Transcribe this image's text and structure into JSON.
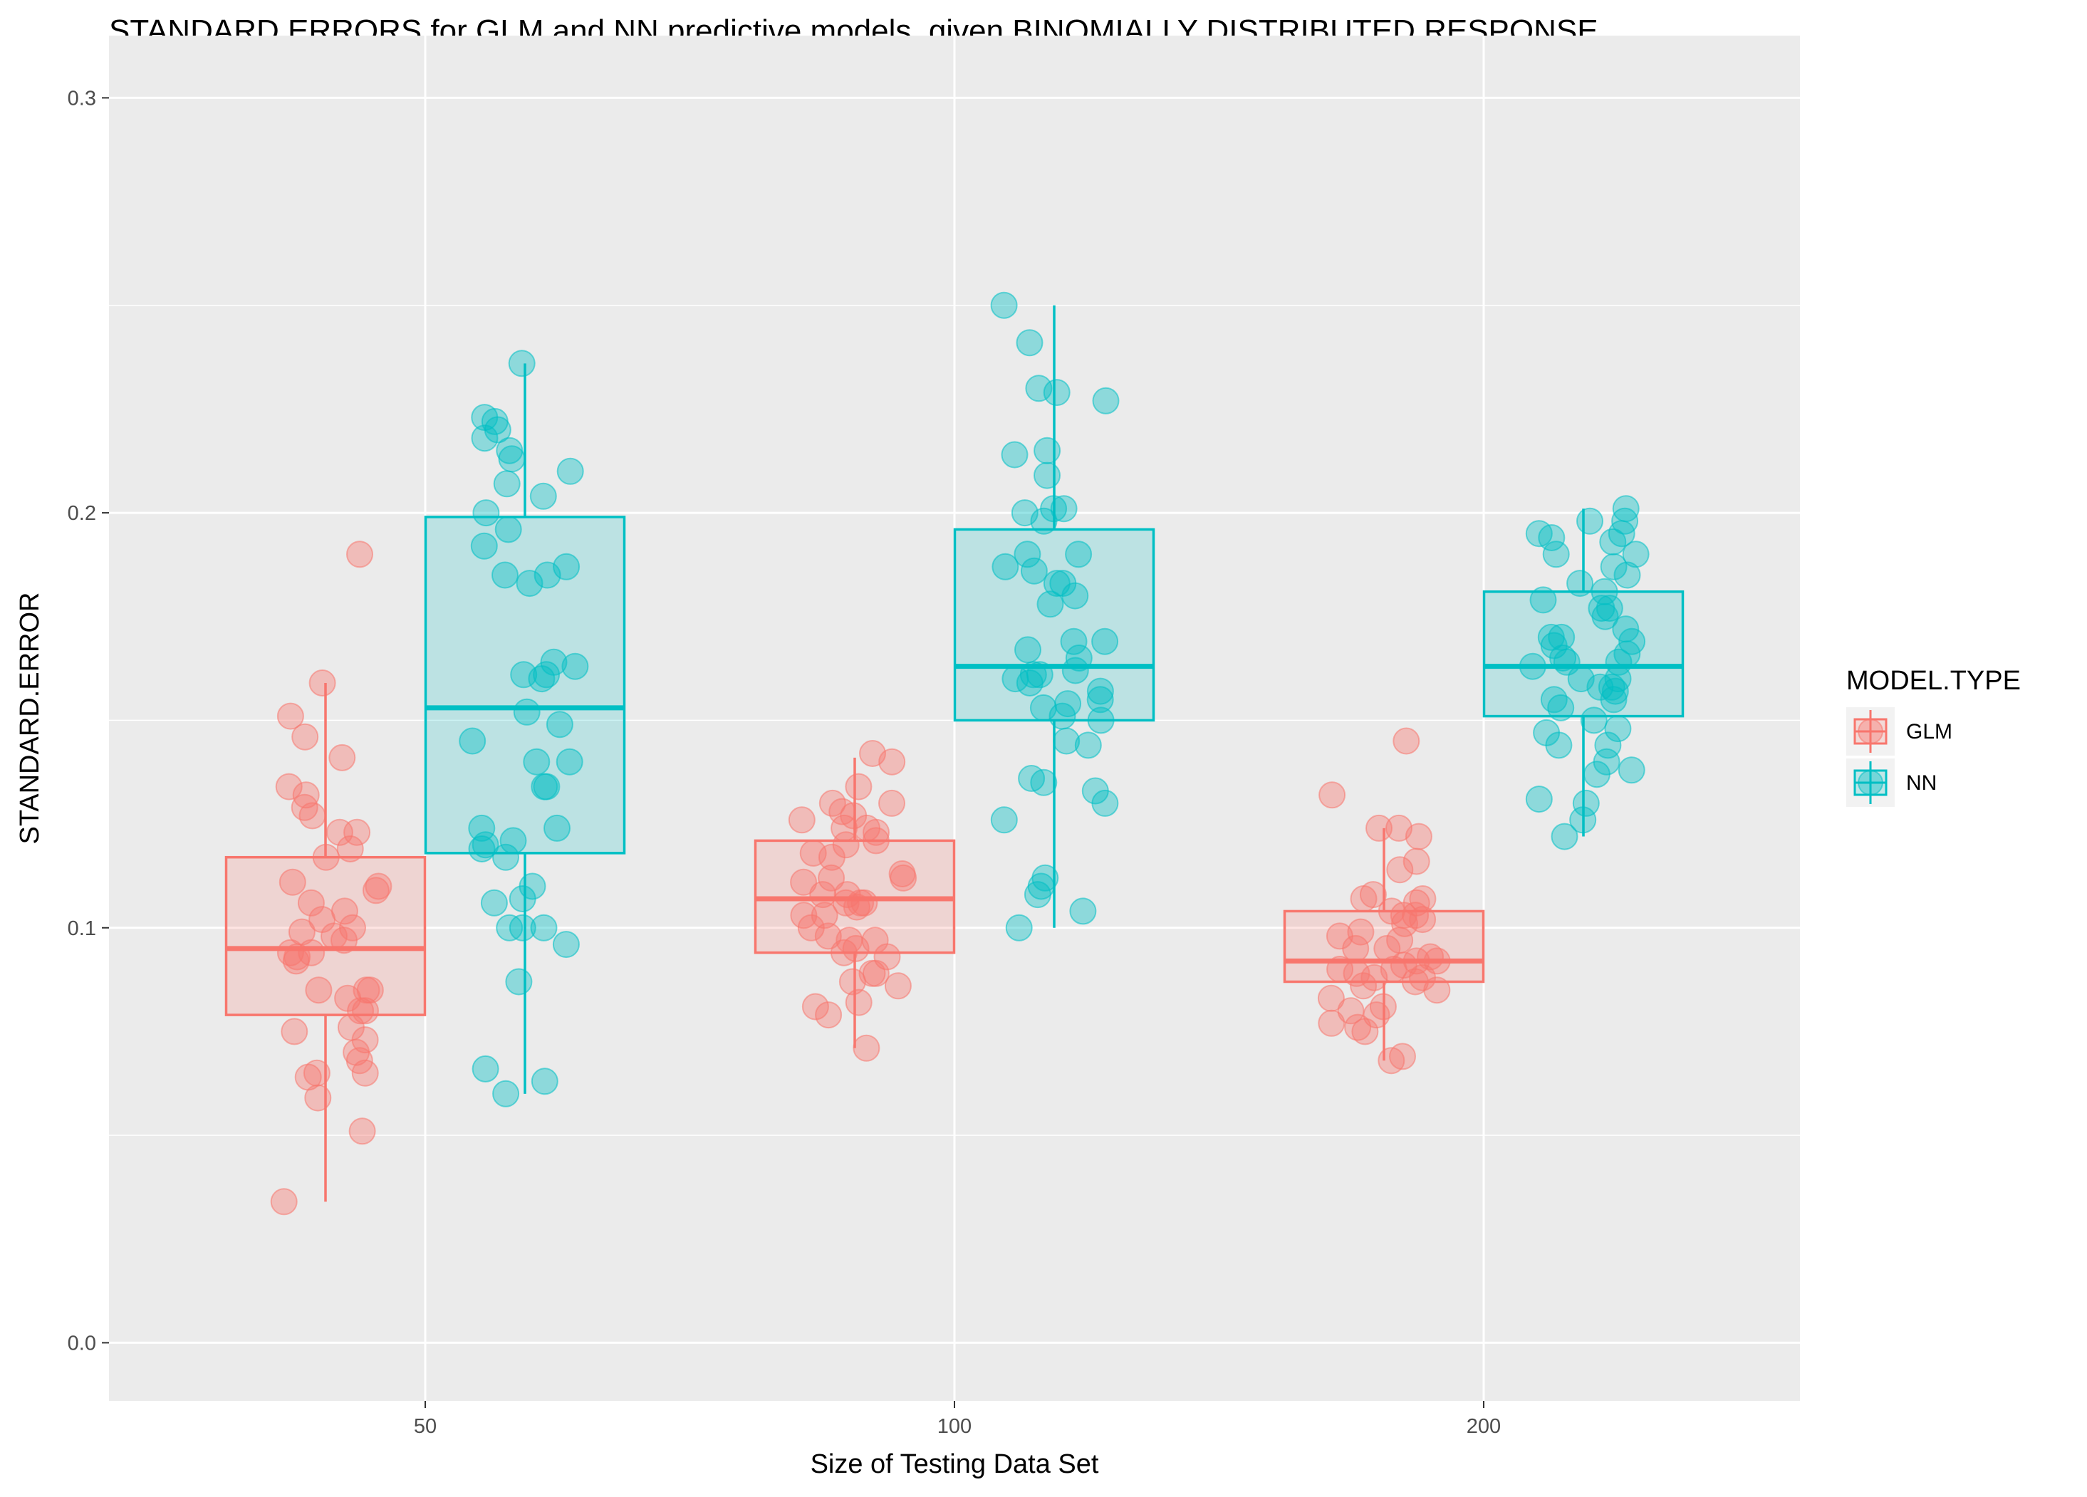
{
  "chart_data": {
    "type": "boxplot_with_jitter",
    "title": "STANDARD ERRORS for GLM and NN predictive models, given BINOMIALLY DISTRIBUTED RESPONSE",
    "xlabel": "Size of Testing Data Set",
    "ylabel": "STANDARD.ERROR",
    "categories": [
      "50",
      "100",
      "200"
    ],
    "yticks": [
      "0.0",
      "0.1",
      "0.2",
      "0.3"
    ],
    "ylim": [
      -0.014,
      0.315
    ],
    "grid": true,
    "legend": {
      "title": "MODEL.TYPE",
      "position": "right",
      "entries": [
        "GLM",
        "NN"
      ]
    },
    "colors": {
      "GLM": "#F8766D",
      "NN": "#00BFC4",
      "panel": "#EBEBEB",
      "grid": "#FFFFFF"
    },
    "series": [
      {
        "name": "GLM",
        "boxes": [
          {
            "category": "50",
            "min": 0.034,
            "q1": 0.079,
            "median": 0.095,
            "q3": 0.117,
            "max": 0.159
          },
          {
            "category": "100",
            "min": 0.071,
            "q1": 0.094,
            "median": 0.107,
            "q3": 0.121,
            "max": 0.141
          },
          {
            "category": "200",
            "min": 0.068,
            "q1": 0.087,
            "median": 0.092,
            "q3": 0.104,
            "max": 0.124
          }
        ],
        "points": [
          [
            0.141,
            0.129,
            0.123,
            0.11,
            0.104,
            0.097,
            0.094,
            0.085,
            0.083,
            0.08,
            0.076,
            0.064,
            0.123,
            0.111,
            0.098,
            0.093,
            0.075,
            0.07,
            0.065,
            0.051,
            0.034,
            0.159,
            0.119,
            0.106,
            0.099,
            0.094,
            0.085,
            0.073,
            0.065,
            0.059,
            0.19,
            0.151,
            0.134,
            0.132,
            0.127,
            0.117,
            0.109,
            0.102,
            0.1,
            0.092,
            0.085,
            0.08,
            0.068,
            0.146
          ],
          [
            0.134,
            0.13,
            0.123,
            0.118,
            0.106,
            0.1,
            0.097,
            0.094,
            0.089,
            0.079,
            0.128,
            0.124,
            0.12,
            0.113,
            0.108,
            0.103,
            0.098,
            0.081,
            0.142,
            0.126,
            0.117,
            0.112,
            0.106,
            0.103,
            0.093,
            0.087,
            0.082,
            0.14,
            0.124,
            0.121,
            0.111,
            0.106,
            0.097,
            0.095,
            0.089,
            0.13,
            0.127,
            0.112,
            0.108,
            0.105,
            0.086,
            0.071
          ],
          [
            0.132,
            0.124,
            0.114,
            0.108,
            0.106,
            0.103,
            0.099,
            0.087,
            0.085,
            0.081,
            0.08,
            0.068,
            0.069,
            0.107,
            0.104,
            0.101,
            0.098,
            0.093,
            0.09,
            0.089,
            0.124,
            0.116,
            0.107,
            0.102,
            0.095,
            0.092,
            0.088,
            0.079,
            0.077,
            0.075,
            0.145,
            0.122,
            0.103,
            0.092,
            0.09,
            0.088,
            0.086,
            0.083,
            0.076,
            0.095,
            0.097,
            0.091
          ]
        ]
      },
      {
        "name": "NN",
        "boxes": [
          {
            "category": "50",
            "min": 0.06,
            "q1": 0.118,
            "median": 0.153,
            "q3": 0.199,
            "max": 0.236
          },
          {
            "category": "100",
            "min": 0.1,
            "q1": 0.15,
            "median": 0.163,
            "q3": 0.196,
            "max": 0.25
          },
          {
            "category": "200",
            "min": 0.122,
            "q1": 0.151,
            "median": 0.163,
            "q3": 0.181,
            "max": 0.201
          }
        ],
        "points": [
          [
            0.204,
            0.161,
            0.16,
            0.14,
            0.134,
            0.12,
            0.11,
            0.106,
            0.1,
            0.087,
            0.06,
            0.063,
            0.215,
            0.213,
            0.22,
            0.207,
            0.192,
            0.183,
            0.163,
            0.161,
            0.152,
            0.149,
            0.124,
            0.117,
            0.107,
            0.1,
            0.2,
            0.187,
            0.196,
            0.145,
            0.14,
            0.121,
            0.119,
            0.066,
            0.223,
            0.218,
            0.164,
            0.185,
            0.134,
            0.1,
            0.222,
            0.236,
            0.21,
            0.185,
            0.124,
            0.096
          ],
          [
            0.23,
            0.227,
            0.2,
            0.19,
            0.183,
            0.169,
            0.167,
            0.165,
            0.161,
            0.144,
            0.136,
            0.229,
            0.19,
            0.183,
            0.18,
            0.169,
            0.159,
            0.16,
            0.104,
            0.25,
            0.214,
            0.201,
            0.178,
            0.161,
            0.162,
            0.154,
            0.151,
            0.108,
            0.215,
            0.209,
            0.201,
            0.186,
            0.157,
            0.155,
            0.145,
            0.135,
            0.133,
            0.241,
            0.187,
            0.198,
            0.153,
            0.15,
            0.13,
            0.126,
            0.112,
            0.11,
            0.1
          ],
          [
            0.201,
            0.17,
            0.169,
            0.14,
            0.19,
            0.187,
            0.183,
            0.177,
            0.172,
            0.165,
            0.155,
            0.15,
            0.137,
            0.198,
            0.195,
            0.185,
            0.177,
            0.163,
            0.158,
            0.153,
            0.148,
            0.144,
            0.138,
            0.13,
            0.198,
            0.194,
            0.179,
            0.168,
            0.166,
            0.157,
            0.144,
            0.122,
            0.195,
            0.193,
            0.181,
            0.175,
            0.17,
            0.164,
            0.16,
            0.158,
            0.155,
            0.147,
            0.131,
            0.19,
            0.164,
            0.16,
            0.126
          ]
        ]
      }
    ]
  }
}
